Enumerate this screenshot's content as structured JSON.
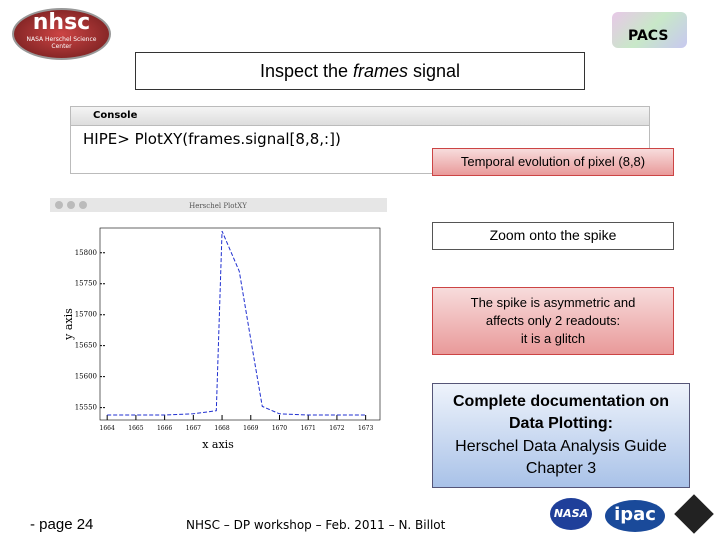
{
  "header": {
    "logo_left": "nhsc",
    "logo_left_sub": "NASA Herschel Science Center",
    "logo_right": "PACS",
    "title_parts": [
      "Inspect the ",
      "frames",
      " signal"
    ]
  },
  "console": {
    "tab": "Console",
    "command": "HIPE> PlotXY(frames.signal[8,8,:])"
  },
  "plot": {
    "window_title": "Herschel PlotXY",
    "xlabel": "x axis",
    "ylabel": "y axis",
    "color": "#1f2fd0",
    "x": [
      1664,
      1665,
      1666,
      1667,
      1667.8,
      1668,
      1668.6,
      1669,
      1669.4,
      1670,
      1671,
      1672,
      1673
    ],
    "y": [
      15538,
      15538,
      15538,
      15540,
      15545,
      15835,
      15770,
      15660,
      15552,
      15540,
      15538,
      15538,
      15538
    ],
    "xlim": [
      1663.75,
      1673.5
    ],
    "ylim": [
      15530,
      15840
    ],
    "xticks": [
      1664,
      1665,
      1666,
      1667,
      1668,
      1669,
      1670,
      1671,
      1672,
      1673
    ],
    "yticks": [
      15550,
      15600,
      15650,
      15700,
      15750,
      15800
    ]
  },
  "callouts": [
    {
      "lines": [
        "Temporal evolution of pixel (8,8)"
      ]
    },
    {
      "lines": [
        "Zoom onto the spike"
      ]
    },
    {
      "lines": [
        "The spike is asymmetric and",
        "affects only 2 readouts:",
        "it is a glitch"
      ]
    },
    {
      "lines": [
        "Complete documentation on",
        "Data Plotting:",
        "Herschel Data Analysis Guide",
        "Chapter 3"
      ]
    }
  ],
  "footer": {
    "page": "- page 24",
    "credit": "NHSC – DP workshop – Feb. 2011 – N. Billot",
    "logo_nasa": "NASA",
    "logo_ipac": "ipac"
  }
}
